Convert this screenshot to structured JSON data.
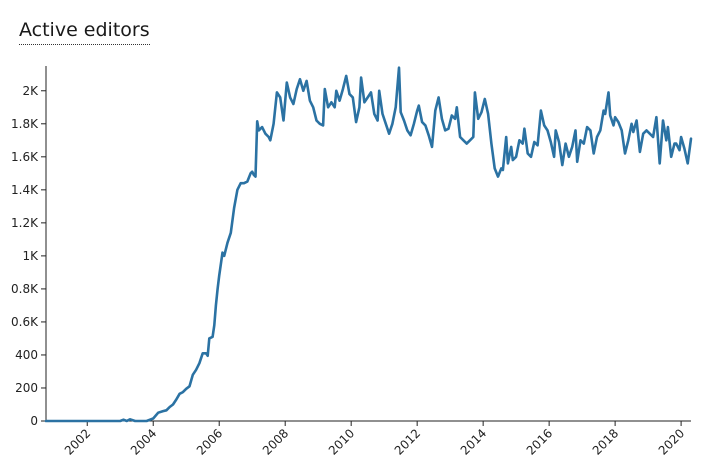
{
  "chart_data": {
    "type": "line",
    "title": "Active editors",
    "xlabel": "",
    "ylabel": "",
    "xlim": [
      2000.75,
      2020.3
    ],
    "ylim": [
      0,
      2150
    ],
    "grid": false,
    "legend": "none",
    "y_ticks": [
      {
        "value": 0,
        "label": "0"
      },
      {
        "value": 200,
        "label": "200"
      },
      {
        "value": 400,
        "label": "400"
      },
      {
        "value": 600,
        "label": "0.6K"
      },
      {
        "value": 800,
        "label": "0.8K"
      },
      {
        "value": 1000,
        "label": "1K"
      },
      {
        "value": 1200,
        "label": "1.2K"
      },
      {
        "value": 1400,
        "label": "1.4K"
      },
      {
        "value": 1600,
        "label": "1.6K"
      },
      {
        "value": 1800,
        "label": "1.8K"
      },
      {
        "value": 2000,
        "label": "2K"
      }
    ],
    "x_ticks": [
      {
        "value": 2002,
        "label": "2002"
      },
      {
        "value": 2004,
        "label": "2004"
      },
      {
        "value": 2006,
        "label": "2006"
      },
      {
        "value": 2008,
        "label": "2008"
      },
      {
        "value": 2010,
        "label": "2010"
      },
      {
        "value": 2012,
        "label": "2012"
      },
      {
        "value": 2014,
        "label": "2014"
      },
      {
        "value": 2016,
        "label": "2016"
      },
      {
        "value": 2018,
        "label": "2018"
      },
      {
        "value": 2020,
        "label": "2020"
      }
    ],
    "series": [
      {
        "color": "#2b72a3",
        "points": [
          [
            2000.75,
            0
          ],
          [
            2001.5,
            0
          ],
          [
            2002.5,
            0
          ],
          [
            2003.0,
            0
          ],
          [
            2003.1,
            8
          ],
          [
            2003.2,
            0
          ],
          [
            2003.3,
            10
          ],
          [
            2003.45,
            0
          ],
          [
            2003.8,
            0
          ],
          [
            2004.0,
            15
          ],
          [
            2004.15,
            50
          ],
          [
            2004.3,
            60
          ],
          [
            2004.4,
            65
          ],
          [
            2004.5,
            85
          ],
          [
            2004.6,
            100
          ],
          [
            2004.7,
            130
          ],
          [
            2004.8,
            165
          ],
          [
            2004.9,
            175
          ],
          [
            2005.0,
            195
          ],
          [
            2005.1,
            210
          ],
          [
            2005.2,
            280
          ],
          [
            2005.3,
            310
          ],
          [
            2005.4,
            350
          ],
          [
            2005.5,
            410
          ],
          [
            2005.6,
            410
          ],
          [
            2005.65,
            395
          ],
          [
            2005.7,
            500
          ],
          [
            2005.8,
            510
          ],
          [
            2005.85,
            580
          ],
          [
            2005.9,
            700
          ],
          [
            2005.95,
            800
          ],
          [
            2006.0,
            880
          ],
          [
            2006.1,
            1020
          ],
          [
            2006.15,
            1000
          ],
          [
            2006.25,
            1080
          ],
          [
            2006.35,
            1140
          ],
          [
            2006.45,
            1290
          ],
          [
            2006.55,
            1400
          ],
          [
            2006.65,
            1440
          ],
          [
            2006.75,
            1440
          ],
          [
            2006.85,
            1450
          ],
          [
            2006.95,
            1500
          ],
          [
            2007.0,
            1510
          ],
          [
            2007.05,
            1490
          ],
          [
            2007.1,
            1480
          ],
          [
            2007.15,
            1815
          ],
          [
            2007.2,
            1760
          ],
          [
            2007.3,
            1780
          ],
          [
            2007.4,
            1740
          ],
          [
            2007.5,
            1720
          ],
          [
            2007.55,
            1700
          ],
          [
            2007.65,
            1800
          ],
          [
            2007.75,
            1990
          ],
          [
            2007.85,
            1960
          ],
          [
            2007.95,
            1820
          ],
          [
            2008.05,
            2050
          ],
          [
            2008.15,
            1960
          ],
          [
            2008.25,
            1920
          ],
          [
            2008.35,
            2010
          ],
          [
            2008.45,
            2070
          ],
          [
            2008.55,
            2000
          ],
          [
            2008.65,
            2060
          ],
          [
            2008.75,
            1940
          ],
          [
            2008.85,
            1900
          ],
          [
            2008.95,
            1820
          ],
          [
            2009.05,
            1800
          ],
          [
            2009.15,
            1790
          ],
          [
            2009.2,
            2010
          ],
          [
            2009.3,
            1900
          ],
          [
            2009.4,
            1930
          ],
          [
            2009.5,
            1900
          ],
          [
            2009.55,
            2000
          ],
          [
            2009.65,
            1940
          ],
          [
            2009.75,
            2010
          ],
          [
            2009.85,
            2090
          ],
          [
            2009.95,
            1980
          ],
          [
            2010.05,
            1960
          ],
          [
            2010.15,
            1810
          ],
          [
            2010.25,
            1900
          ],
          [
            2010.3,
            2080
          ],
          [
            2010.4,
            1930
          ],
          [
            2010.5,
            1960
          ],
          [
            2010.6,
            1990
          ],
          [
            2010.7,
            1860
          ],
          [
            2010.8,
            1820
          ],
          [
            2010.85,
            2000
          ],
          [
            2010.95,
            1860
          ],
          [
            2011.05,
            1800
          ],
          [
            2011.15,
            1740
          ],
          [
            2011.25,
            1800
          ],
          [
            2011.35,
            1900
          ],
          [
            2011.45,
            2140
          ],
          [
            2011.5,
            1870
          ],
          [
            2011.6,
            1820
          ],
          [
            2011.7,
            1760
          ],
          [
            2011.8,
            1730
          ],
          [
            2011.9,
            1800
          ],
          [
            2012.0,
            1880
          ],
          [
            2012.05,
            1910
          ],
          [
            2012.15,
            1810
          ],
          [
            2012.25,
            1790
          ],
          [
            2012.35,
            1730
          ],
          [
            2012.45,
            1660
          ],
          [
            2012.55,
            1880
          ],
          [
            2012.65,
            1960
          ],
          [
            2012.75,
            1830
          ],
          [
            2012.85,
            1760
          ],
          [
            2012.95,
            1770
          ],
          [
            2013.05,
            1850
          ],
          [
            2013.15,
            1830
          ],
          [
            2013.2,
            1900
          ],
          [
            2013.3,
            1720
          ],
          [
            2013.4,
            1700
          ],
          [
            2013.5,
            1680
          ],
          [
            2013.6,
            1700
          ],
          [
            2013.7,
            1720
          ],
          [
            2013.75,
            1990
          ],
          [
            2013.85,
            1830
          ],
          [
            2013.95,
            1870
          ],
          [
            2014.05,
            1950
          ],
          [
            2014.15,
            1860
          ],
          [
            2014.25,
            1680
          ],
          [
            2014.35,
            1530
          ],
          [
            2014.45,
            1480
          ],
          [
            2014.55,
            1530
          ],
          [
            2014.6,
            1520
          ],
          [
            2014.7,
            1720
          ],
          [
            2014.75,
            1560
          ],
          [
            2014.85,
            1660
          ],
          [
            2014.9,
            1580
          ],
          [
            2015.0,
            1600
          ],
          [
            2015.1,
            1700
          ],
          [
            2015.2,
            1680
          ],
          [
            2015.25,
            1770
          ],
          [
            2015.35,
            1620
          ],
          [
            2015.45,
            1600
          ],
          [
            2015.55,
            1690
          ],
          [
            2015.65,
            1670
          ],
          [
            2015.75,
            1880
          ],
          [
            2015.85,
            1790
          ],
          [
            2015.95,
            1760
          ],
          [
            2016.05,
            1690
          ],
          [
            2016.15,
            1600
          ],
          [
            2016.2,
            1760
          ],
          [
            2016.3,
            1690
          ],
          [
            2016.4,
            1550
          ],
          [
            2016.5,
            1680
          ],
          [
            2016.6,
            1600
          ],
          [
            2016.7,
            1660
          ],
          [
            2016.8,
            1760
          ],
          [
            2016.85,
            1570
          ],
          [
            2016.95,
            1700
          ],
          [
            2017.05,
            1680
          ],
          [
            2017.15,
            1780
          ],
          [
            2017.25,
            1760
          ],
          [
            2017.35,
            1620
          ],
          [
            2017.45,
            1720
          ],
          [
            2017.55,
            1760
          ],
          [
            2017.65,
            1880
          ],
          [
            2017.7,
            1860
          ],
          [
            2017.8,
            1990
          ],
          [
            2017.85,
            1850
          ],
          [
            2017.95,
            1790
          ],
          [
            2018.0,
            1840
          ],
          [
            2018.1,
            1810
          ],
          [
            2018.2,
            1760
          ],
          [
            2018.3,
            1620
          ],
          [
            2018.4,
            1700
          ],
          [
            2018.5,
            1800
          ],
          [
            2018.55,
            1750
          ],
          [
            2018.65,
            1820
          ],
          [
            2018.75,
            1630
          ],
          [
            2018.85,
            1740
          ],
          [
            2018.95,
            1760
          ],
          [
            2019.05,
            1740
          ],
          [
            2019.15,
            1720
          ],
          [
            2019.25,
            1840
          ],
          [
            2019.35,
            1560
          ],
          [
            2019.45,
            1820
          ],
          [
            2019.55,
            1700
          ],
          [
            2019.6,
            1780
          ],
          [
            2019.7,
            1600
          ],
          [
            2019.8,
            1680
          ],
          [
            2019.85,
            1680
          ],
          [
            2019.95,
            1640
          ],
          [
            2020.0,
            1720
          ],
          [
            2020.1,
            1650
          ],
          [
            2020.2,
            1560
          ],
          [
            2020.3,
            1710
          ]
        ]
      }
    ]
  }
}
